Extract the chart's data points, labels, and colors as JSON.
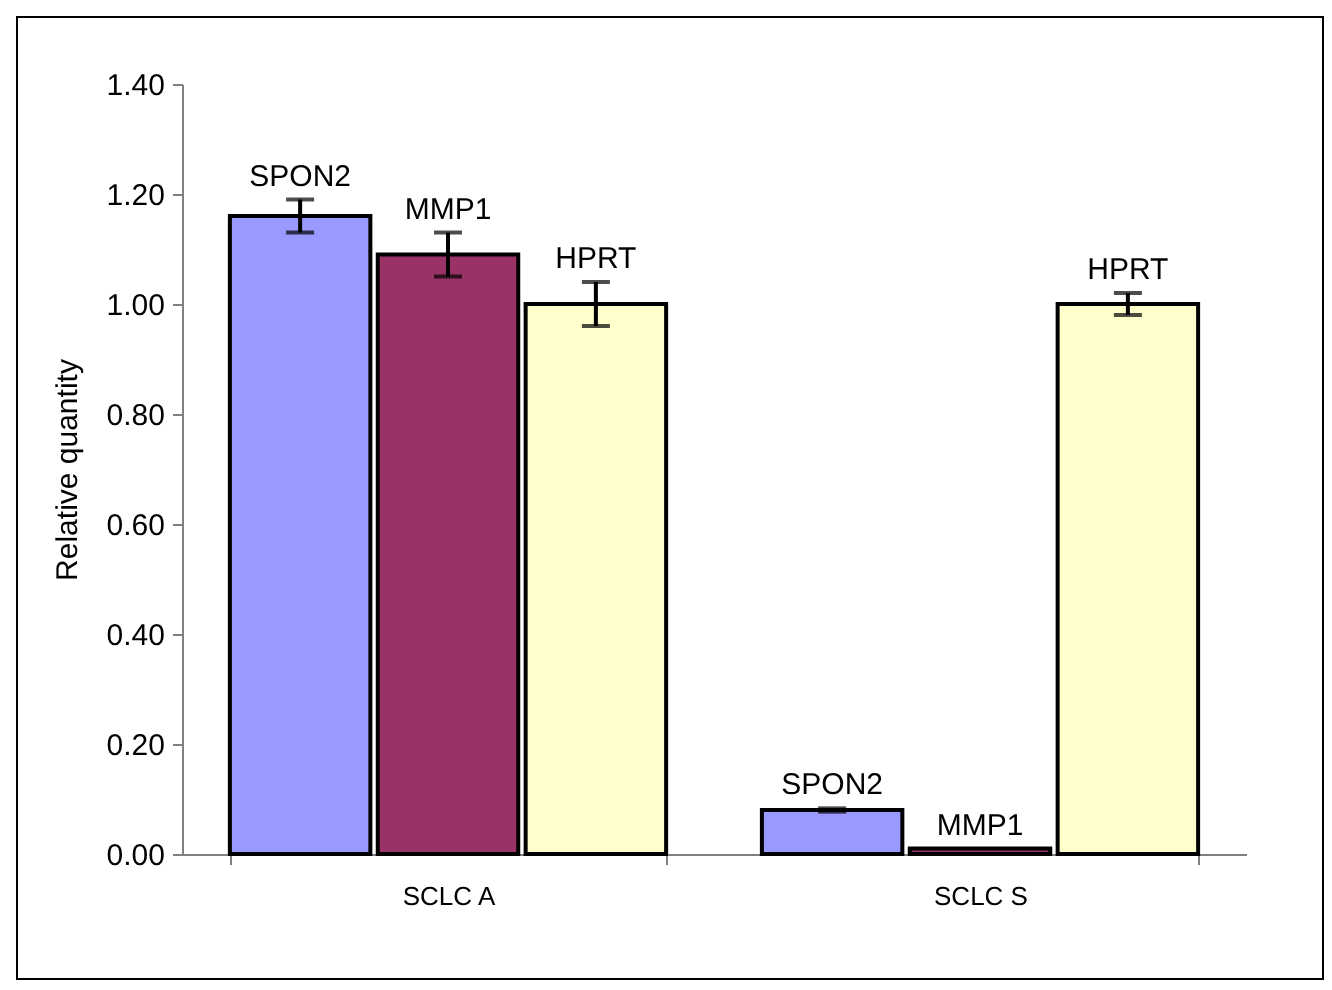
{
  "chart_data": {
    "type": "bar",
    "ylabel": "Relative quantity",
    "categories": [
      "SCLC A",
      "SCLC S"
    ],
    "series": [
      {
        "name": "SPON2",
        "color": "#9999ff",
        "values": [
          1.16,
          0.08
        ],
        "errors": [
          0.03,
          0.003
        ]
      },
      {
        "name": "MMP1",
        "color": "#993366",
        "values": [
          1.09,
          0.01
        ],
        "errors": [
          0.04,
          null
        ]
      },
      {
        "name": "HPRT",
        "color": "#ffffcc",
        "values": [
          1.0,
          1.0
        ],
        "errors": [
          0.04,
          0.02
        ]
      }
    ],
    "ylim": [
      0,
      1.4
    ],
    "yticks": [
      {
        "value": 0,
        "label": "0.00"
      },
      {
        "value": 0.2,
        "label": "0.20"
      },
      {
        "value": 0.4,
        "label": "0.40"
      },
      {
        "value": 0.6,
        "label": "0.60"
      },
      {
        "value": 0.8,
        "label": "0.80"
      },
      {
        "value": 1.0,
        "label": "1.00"
      },
      {
        "value": 1.2,
        "label": "1.20"
      },
      {
        "value": 1.4,
        "label": "1.40"
      }
    ],
    "grid": false,
    "legend": false
  }
}
